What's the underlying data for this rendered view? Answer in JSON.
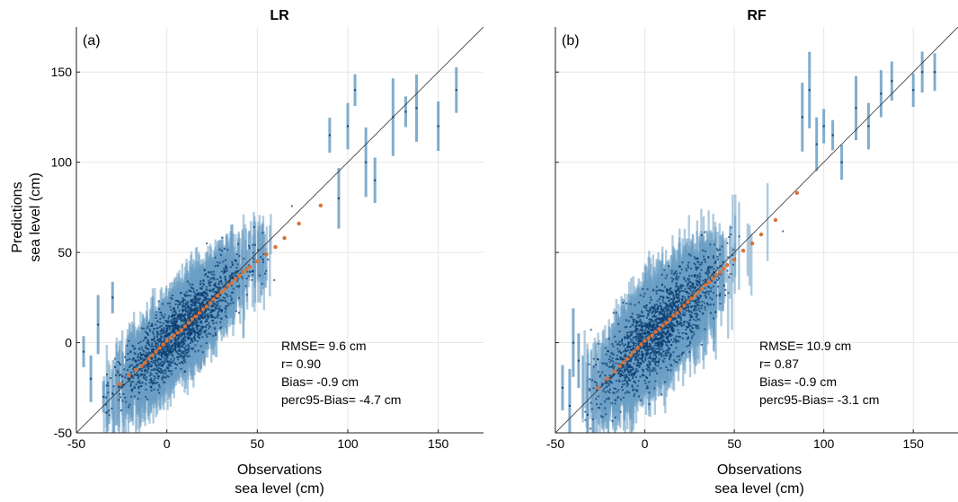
{
  "chart_data": [
    {
      "type": "scatter",
      "panel_label": "(a)",
      "title": "LR",
      "xlabel": [
        "Observations",
        "sea level (cm)"
      ],
      "ylabel": [
        "Predictions",
        "sea level (cm)"
      ],
      "xlim": [
        -50,
        175
      ],
      "ylim": [
        -50,
        175
      ],
      "xticks": [
        -50,
        0,
        50,
        100,
        150
      ],
      "yticks": [
        -50,
        0,
        50,
        100,
        150
      ],
      "xtick_labels": [
        "-50",
        "0",
        "50",
        "100",
        "150"
      ],
      "ytick_labels": [
        "-50",
        "0",
        "50",
        "100",
        "150"
      ],
      "grid": true,
      "identity_line": true,
      "stats": [
        "RMSE= 9.6 cm",
        "r= 0.90",
        "Bias= -0.9 cm",
        "perc95-Bias= -4.7 cm"
      ],
      "colors": {
        "intervals": "#6b9fc4",
        "points": "#0d3f73",
        "mean": "#d9733a",
        "line": "#333333"
      },
      "mean_points": [
        [
          -26,
          -23
        ],
        [
          -21,
          -18
        ],
        [
          -17,
          -15
        ],
        [
          -14,
          -13
        ],
        [
          -12,
          -11
        ],
        [
          -10,
          -9
        ],
        [
          -8,
          -7
        ],
        [
          -6,
          -5
        ],
        [
          -4,
          -3
        ],
        [
          -2,
          -1
        ],
        [
          0,
          1
        ],
        [
          2,
          2.5
        ],
        [
          4,
          4
        ],
        [
          6,
          5.5
        ],
        [
          8,
          7
        ],
        [
          10,
          9
        ],
        [
          12,
          11
        ],
        [
          14,
          13
        ],
        [
          16,
          14.5
        ],
        [
          18,
          16.5
        ],
        [
          20,
          18.5
        ],
        [
          22,
          20
        ],
        [
          24,
          22
        ],
        [
          26,
          24
        ],
        [
          28,
          26
        ],
        [
          30,
          28
        ],
        [
          32,
          29.5
        ],
        [
          34,
          31.5
        ],
        [
          36,
          33
        ],
        [
          38,
          35
        ],
        [
          40,
          37
        ],
        [
          42,
          39
        ],
        [
          44,
          40.5
        ],
        [
          46,
          42
        ],
        [
          50,
          45
        ],
        [
          55,
          49
        ],
        [
          60,
          53
        ],
        [
          65,
          58
        ],
        [
          73,
          66
        ],
        [
          85,
          76
        ]
      ],
      "sparse_points": [
        [
          -46,
          -5
        ],
        [
          -42,
          -20
        ],
        [
          -38,
          10
        ],
        [
          -35,
          -30
        ],
        [
          -30,
          25
        ],
        [
          90,
          115
        ],
        [
          95,
          80
        ],
        [
          100,
          120
        ],
        [
          104,
          140
        ],
        [
          110,
          100
        ],
        [
          115,
          90
        ],
        [
          125,
          125
        ],
        [
          132,
          128
        ],
        [
          138,
          130
        ],
        [
          150,
          120
        ],
        [
          160,
          140
        ]
      ]
    },
    {
      "type": "scatter",
      "panel_label": "(b)",
      "title": "RF",
      "xlabel": [
        "Observations",
        "sea level (cm)"
      ],
      "ylabel": [],
      "xlim": [
        -50,
        175
      ],
      "ylim": [
        -50,
        175
      ],
      "xticks": [
        -50,
        0,
        50,
        100,
        150
      ],
      "yticks": [
        -50,
        0,
        50,
        100,
        150
      ],
      "xtick_labels": [
        "-50",
        "0",
        "50",
        "100",
        "150"
      ],
      "ytick_labels": [],
      "grid": true,
      "identity_line": true,
      "stats": [
        "RMSE= 10.9 cm",
        "r= 0.87",
        "Bias= -0.9 cm",
        "perc95-Bias= -3.1 cm"
      ],
      "colors": {
        "intervals": "#6b9fc4",
        "points": "#0d3f73",
        "mean": "#d9733a",
        "line": "#333333"
      },
      "mean_points": [
        [
          -26,
          -25
        ],
        [
          -21,
          -20
        ],
        [
          -17,
          -16
        ],
        [
          -14,
          -13
        ],
        [
          -12,
          -11
        ],
        [
          -10,
          -9
        ],
        [
          -8,
          -7
        ],
        [
          -6,
          -5
        ],
        [
          -4,
          -3
        ],
        [
          -2,
          -1
        ],
        [
          0,
          1
        ],
        [
          2,
          2.5
        ],
        [
          4,
          4
        ],
        [
          6,
          6
        ],
        [
          8,
          7.5
        ],
        [
          10,
          9.5
        ],
        [
          12,
          11
        ],
        [
          14,
          13
        ],
        [
          16,
          15
        ],
        [
          18,
          16.5
        ],
        [
          20,
          18.5
        ],
        [
          22,
          20.5
        ],
        [
          24,
          22.5
        ],
        [
          26,
          24.5
        ],
        [
          28,
          26
        ],
        [
          30,
          28
        ],
        [
          32,
          30
        ],
        [
          34,
          32
        ],
        [
          36,
          33.5
        ],
        [
          38,
          35.5
        ],
        [
          40,
          37.5
        ],
        [
          42,
          39
        ],
        [
          44,
          41
        ],
        [
          46,
          43
        ],
        [
          50,
          46
        ],
        [
          55,
          51
        ],
        [
          60,
          55
        ],
        [
          65,
          60
        ],
        [
          73,
          68
        ],
        [
          85,
          83
        ]
      ],
      "sparse_points": [
        [
          -46,
          -25
        ],
        [
          -42,
          -35
        ],
        [
          -40,
          0
        ],
        [
          -37,
          -10
        ],
        [
          -32,
          -40
        ],
        [
          88,
          125
        ],
        [
          92,
          140
        ],
        [
          96,
          110
        ],
        [
          100,
          120
        ],
        [
          105,
          115
        ],
        [
          110,
          100
        ],
        [
          118,
          130
        ],
        [
          125,
          120
        ],
        [
          132,
          138
        ],
        [
          138,
          145
        ],
        [
          150,
          140
        ],
        [
          155,
          150
        ],
        [
          162,
          150
        ]
      ]
    }
  ]
}
